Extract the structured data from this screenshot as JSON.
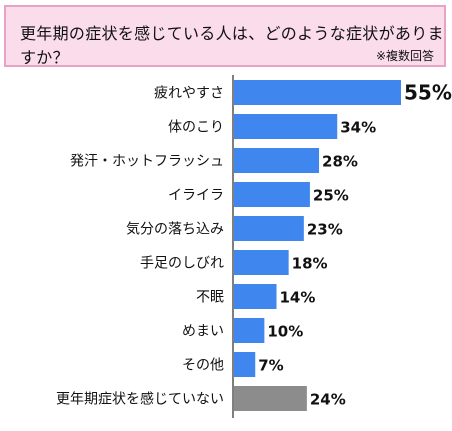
{
  "header": {
    "title": "更年期の症状を感じている人は、どのような症状がありますか？",
    "note": "※複数回答"
  },
  "colors": {
    "bar": "#3f86ef",
    "bar_none": "#8c8c8c",
    "axis": "#555555",
    "header_bg": "#fadcea",
    "header_border": "#eaa2c4"
  },
  "chart_data": {
    "type": "bar",
    "orientation": "horizontal",
    "title": "更年期の症状を感じている人は、どのような症状がありますか？",
    "note": "※複数回答",
    "xlabel": "",
    "ylabel": "",
    "xlim": [
      0,
      55
    ],
    "grid": false,
    "legend": "none",
    "unit": "%",
    "categories": [
      "疲れやすさ",
      "体のこり",
      "発汗・ホットフラッシュ",
      "イライラ",
      "気分の落ち込み",
      "手足のしびれ",
      "不眠",
      "めまい",
      "その他",
      "更年期症状を感じていない"
    ],
    "values": [
      55,
      34,
      28,
      25,
      23,
      18,
      14,
      10,
      7,
      24
    ],
    "labels": [
      "55%",
      "34%",
      "28%",
      "25%",
      "23%",
      "18%",
      "14%",
      "10%",
      "7%",
      "24%"
    ]
  }
}
